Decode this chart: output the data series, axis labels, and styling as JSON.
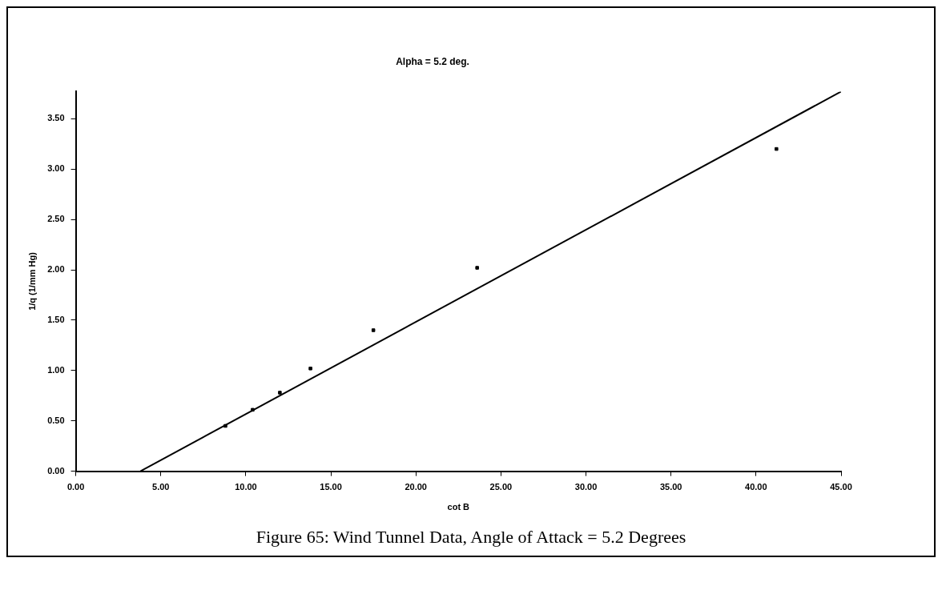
{
  "chart_data": {
    "type": "scatter",
    "title": "Alpha = 5.2 deg.",
    "xlabel": "cot B",
    "ylabel": "1/q (1/mm Hg)",
    "annotations": [
      "Figure 65:  Wind Tunnel Data, Angle of Attack = 5.2 Degrees"
    ],
    "series": [
      {
        "x": [
          8.8,
          10.4,
          12.0,
          13.8,
          17.5,
          23.6,
          41.2
        ],
        "values": [
          0.45,
          0.61,
          0.78,
          1.02,
          1.4,
          2.02,
          3.2
        ],
        "color": "#000000",
        "marker": "square"
      },
      {
        "type": "line",
        "x": [
          3.8,
          45
        ],
        "values": [
          0,
          3.77
        ],
        "color": "#000000",
        "line_style": "solid"
      }
    ],
    "xlim": [
      0,
      45
    ],
    "xticks": [
      {
        "value": 0,
        "label": "0.00"
      },
      {
        "value": 5,
        "label": "5.00"
      },
      {
        "value": 10,
        "label": "10.00"
      },
      {
        "value": 15,
        "label": "15.00"
      },
      {
        "value": 20,
        "label": "20.00"
      },
      {
        "value": 25,
        "label": "25.00"
      },
      {
        "value": 30,
        "label": "30.00"
      },
      {
        "value": 35,
        "label": "35.00"
      },
      {
        "value": 40,
        "label": "40.00"
      },
      {
        "value": 45,
        "label": "45.00"
      }
    ],
    "ylim": [
      0,
      3.77
    ],
    "yticks": [
      {
        "value": 0,
        "label": "0.00"
      },
      {
        "value": 0.5,
        "label": "0.50"
      },
      {
        "value": 1,
        "label": "1.00"
      },
      {
        "value": 1.5,
        "label": "1.50"
      },
      {
        "value": 2,
        "label": "2.00"
      },
      {
        "value": 2.5,
        "label": "2.50"
      },
      {
        "value": 3,
        "label": "3.00"
      },
      {
        "value": 3.5,
        "label": "3.50"
      }
    ],
    "grid": false,
    "legend": false
  }
}
